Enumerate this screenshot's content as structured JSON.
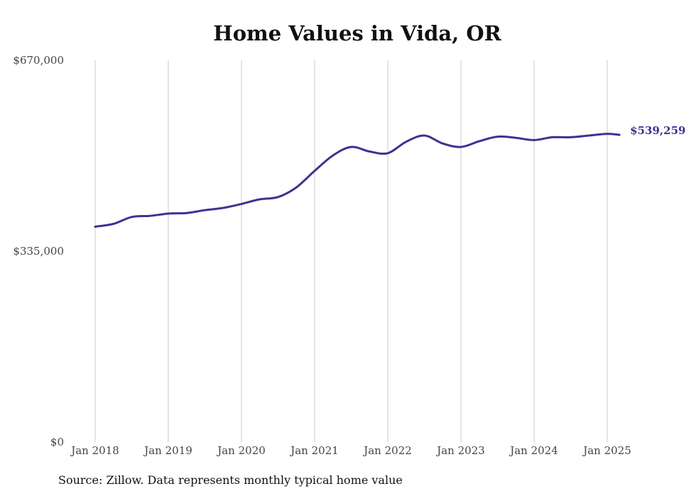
{
  "chart_data": {
    "type": "line",
    "title": "Home Values in Vida, OR",
    "xlabel": "",
    "ylabel": "",
    "ylim": [
      0,
      670000
    ],
    "yticks": [
      {
        "value": 0,
        "label": "$0"
      },
      {
        "value": 335000,
        "label": "$335,000"
      },
      {
        "value": 670000,
        "label": "$670,000"
      }
    ],
    "xticks": [
      "Jan 2018",
      "Jan 2019",
      "Jan 2020",
      "Jan 2021",
      "Jan 2022",
      "Jan 2023",
      "Jan 2024",
      "Jan 2025"
    ],
    "xgrid": true,
    "ygrid": false,
    "series": [
      {
        "name": "",
        "color": "#3a3491",
        "end_label": "$539,259",
        "points": [
          {
            "x": "2018-01",
            "y": 378000
          },
          {
            "x": "2018-04",
            "y": 383000
          },
          {
            "x": "2018-07",
            "y": 395000
          },
          {
            "x": "2018-10",
            "y": 397000
          },
          {
            "x": "2019-01",
            "y": 401000
          },
          {
            "x": "2019-04",
            "y": 402000
          },
          {
            "x": "2019-07",
            "y": 407000
          },
          {
            "x": "2019-10",
            "y": 411000
          },
          {
            "x": "2020-01",
            "y": 418000
          },
          {
            "x": "2020-04",
            "y": 426000
          },
          {
            "x": "2020-07",
            "y": 430000
          },
          {
            "x": "2020-10",
            "y": 447000
          },
          {
            "x": "2021-01",
            "y": 476000
          },
          {
            "x": "2021-04",
            "y": 503000
          },
          {
            "x": "2021-07",
            "y": 518000
          },
          {
            "x": "2021-10",
            "y": 510000
          },
          {
            "x": "2022-01",
            "y": 507000
          },
          {
            "x": "2022-04",
            "y": 527000
          },
          {
            "x": "2022-07",
            "y": 538000
          },
          {
            "x": "2022-10",
            "y": 524000
          },
          {
            "x": "2023-01",
            "y": 518000
          },
          {
            "x": "2023-04",
            "y": 528000
          },
          {
            "x": "2023-07",
            "y": 536000
          },
          {
            "x": "2023-10",
            "y": 534000
          },
          {
            "x": "2024-01",
            "y": 530000
          },
          {
            "x": "2024-04",
            "y": 535000
          },
          {
            "x": "2024-07",
            "y": 535000
          },
          {
            "x": "2024-10",
            "y": 538000
          },
          {
            "x": "2025-01",
            "y": 541000
          },
          {
            "x": "2025-03",
            "y": 539259
          }
        ]
      }
    ],
    "source_note": "Source: Zillow. Data represents monthly typical home value"
  }
}
